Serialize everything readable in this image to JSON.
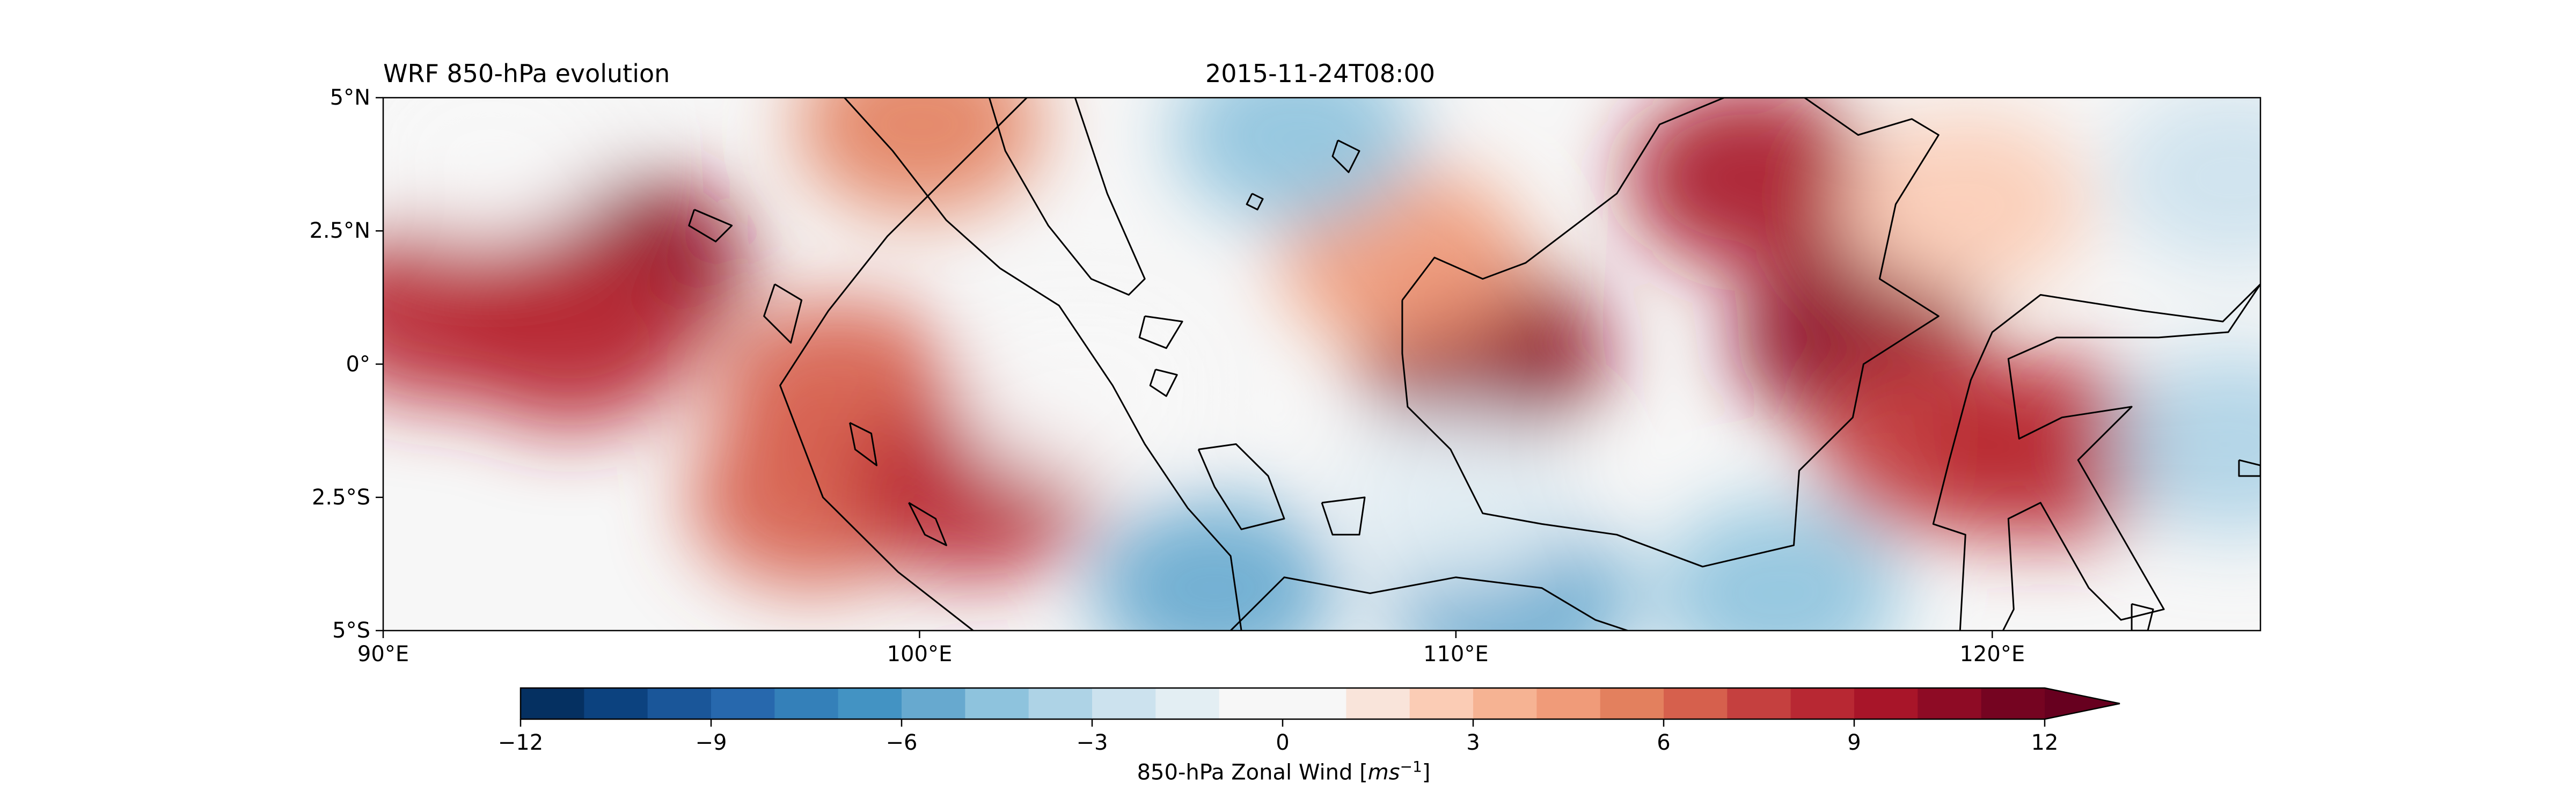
{
  "figure": {
    "title_left": "WRF 850-hPa evolution",
    "title_center": "2015-11-24T08:00"
  },
  "map": {
    "lon_range": [
      90,
      125
    ],
    "lat_range": [
      -5,
      5
    ],
    "lat_ticks": [
      {
        "value": 5,
        "label": "5°N"
      },
      {
        "value": 2.5,
        "label": "2.5°N"
      },
      {
        "value": 0,
        "label": "0°"
      },
      {
        "value": -2.5,
        "label": "2.5°S"
      },
      {
        "value": -5,
        "label": "5°S"
      }
    ],
    "lon_ticks": [
      {
        "value": 90,
        "label": "90°E"
      },
      {
        "value": 100,
        "label": "100°E"
      },
      {
        "value": 110,
        "label": "110°E"
      },
      {
        "value": 120,
        "label": "120°E"
      }
    ],
    "colormap": "RdBu_r",
    "field_features": [
      {
        "lon": 94.5,
        "lat": 1.9,
        "value": 10
      },
      {
        "lon": 91.0,
        "lat": 1.0,
        "value": 8
      },
      {
        "lon": 93.5,
        "lat": 0.5,
        "value": 8
      },
      {
        "lon": 98.5,
        "lat": -0.5,
        "value": 6
      },
      {
        "lon": 98.0,
        "lat": -2.5,
        "value": 6
      },
      {
        "lon": 101.0,
        "lat": -2.3,
        "value": 8
      },
      {
        "lon": 110.5,
        "lat": 0.2,
        "value": 10
      },
      {
        "lon": 117.5,
        "lat": 0.5,
        "value": 10
      },
      {
        "lon": 115.5,
        "lat": 3.5,
        "value": 9
      },
      {
        "lon": 109.0,
        "lat": 2.0,
        "value": 4
      },
      {
        "lon": 119.0,
        "lat": -1.5,
        "value": 7
      },
      {
        "lon": 121.0,
        "lat": -1.6,
        "value": 8
      },
      {
        "lon": 107.0,
        "lat": 4.3,
        "value": -5
      },
      {
        "lon": 105.5,
        "lat": -4.2,
        "value": -6
      },
      {
        "lon": 111.0,
        "lat": -4.4,
        "value": -6
      },
      {
        "lon": 116.0,
        "lat": -4.3,
        "value": -5
      },
      {
        "lon": 124.5,
        "lat": -1.5,
        "value": -4
      },
      {
        "lon": 124.5,
        "lat": 3.5,
        "value": -3
      },
      {
        "lon": 103.0,
        "lat": -0.5,
        "value": -1
      },
      {
        "lon": 110.0,
        "lat": -2.5,
        "value": -2
      },
      {
        "lon": 92.0,
        "lat": 4.0,
        "value": 0
      },
      {
        "lon": 100.0,
        "lat": 4.5,
        "value": 5
      },
      {
        "lon": 119.5,
        "lat": 3.0,
        "value": 2
      }
    ],
    "coastlines": {
      "sumatra": [
        [
          102.0,
          5.0
        ],
        [
          100.6,
          3.6
        ],
        [
          99.4,
          2.4
        ],
        [
          98.3,
          1.0
        ],
        [
          97.4,
          -0.4
        ],
        [
          98.2,
          -2.5
        ],
        [
          99.6,
          -3.9
        ],
        [
          101.0,
          -5.0
        ]
      ],
      "sumatra_east": [
        [
          106.0,
          -5.0
        ],
        [
          105.8,
          -3.6
        ],
        [
          105.0,
          -2.7
        ],
        [
          104.2,
          -1.5
        ],
        [
          103.6,
          -0.4
        ],
        [
          102.6,
          1.1
        ],
        [
          101.5,
          1.8
        ],
        [
          100.5,
          2.7
        ],
        [
          99.5,
          4.0
        ],
        [
          98.6,
          5.0
        ]
      ],
      "malay_peninsula": [
        [
          101.3,
          5.0
        ],
        [
          101.6,
          4.0
        ],
        [
          102.4,
          2.6
        ],
        [
          103.2,
          1.6
        ],
        [
          103.9,
          1.3
        ],
        [
          104.2,
          1.6
        ],
        [
          103.5,
          3.2
        ],
        [
          103.1,
          4.4
        ],
        [
          102.9,
          5.0
        ]
      ],
      "borneo": [
        [
          109.0,
          1.2
        ],
        [
          109.6,
          2.0
        ],
        [
          110.5,
          1.6
        ],
        [
          111.3,
          1.9
        ],
        [
          113.0,
          3.2
        ],
        [
          113.8,
          4.5
        ],
        [
          115.0,
          5.0
        ],
        [
          116.5,
          5.0
        ],
        [
          117.5,
          4.3
        ],
        [
          118.5,
          4.6
        ],
        [
          119.0,
          4.3
        ],
        [
          118.2,
          3.0
        ],
        [
          117.9,
          1.6
        ],
        [
          119.0,
          0.9
        ],
        [
          117.6,
          0.0
        ],
        [
          117.4,
          -1.0
        ],
        [
          116.4,
          -2.0
        ],
        [
          116.3,
          -3.4
        ],
        [
          114.6,
          -3.8
        ],
        [
          113.0,
          -3.2
        ],
        [
          111.6,
          -3.0
        ],
        [
          110.5,
          -2.8
        ],
        [
          109.9,
          -1.6
        ],
        [
          109.1,
          -0.8
        ],
        [
          109.0,
          0.2
        ],
        [
          109.0,
          1.2
        ]
      ],
      "sulawesi": [
        [
          119.4,
          -5.0
        ],
        [
          119.5,
          -3.2
        ],
        [
          118.9,
          -3.0
        ],
        [
          119.2,
          -1.8
        ],
        [
          119.6,
          -0.3
        ],
        [
          120.0,
          0.6
        ],
        [
          120.9,
          1.3
        ],
        [
          122.8,
          1.0
        ],
        [
          124.3,
          0.8
        ],
        [
          125.0,
          1.5
        ],
        [
          124.4,
          0.6
        ],
        [
          123.1,
          0.5
        ],
        [
          121.2,
          0.5
        ],
        [
          120.3,
          0.1
        ],
        [
          120.5,
          -1.4
        ],
        [
          121.3,
          -1.0
        ],
        [
          122.6,
          -0.8
        ],
        [
          121.6,
          -1.8
        ],
        [
          122.4,
          -3.2
        ],
        [
          123.2,
          -4.6
        ],
        [
          122.4,
          -4.8
        ],
        [
          121.8,
          -4.2
        ],
        [
          120.9,
          -2.6
        ],
        [
          120.3,
          -2.9
        ],
        [
          120.4,
          -4.6
        ],
        [
          120.2,
          -5.0
        ]
      ],
      "java_north": [
        [
          105.8,
          -5.0
        ],
        [
          106.8,
          -4.0
        ],
        [
          108.4,
          -4.3
        ],
        [
          110.0,
          -4.0
        ],
        [
          111.6,
          -4.2
        ],
        [
          112.6,
          -4.8
        ],
        [
          113.2,
          -5.0
        ]
      ],
      "bangka": [
        [
          105.2,
          -1.6
        ],
        [
          105.9,
          -1.5
        ],
        [
          106.5,
          -2.1
        ],
        [
          106.8,
          -2.9
        ],
        [
          106.0,
          -3.1
        ],
        [
          105.5,
          -2.3
        ],
        [
          105.2,
          -1.6
        ]
      ],
      "belitung": [
        [
          107.5,
          -2.6
        ],
        [
          108.3,
          -2.5
        ],
        [
          108.2,
          -3.2
        ],
        [
          107.7,
          -3.2
        ],
        [
          107.5,
          -2.6
        ]
      ],
      "nias": [
        [
          97.3,
          1.5
        ],
        [
          97.8,
          1.2
        ],
        [
          97.6,
          0.4
        ],
        [
          97.1,
          0.9
        ],
        [
          97.3,
          1.5
        ]
      ],
      "siberut": [
        [
          98.7,
          -1.1
        ],
        [
          99.1,
          -1.3
        ],
        [
          99.2,
          -1.9
        ],
        [
          98.8,
          -1.6
        ],
        [
          98.7,
          -1.1
        ]
      ],
      "simeulue": [
        [
          95.8,
          2.9
        ],
        [
          96.5,
          2.6
        ],
        [
          96.2,
          2.3
        ],
        [
          95.7,
          2.6
        ],
        [
          95.8,
          2.9
        ]
      ],
      "natuna": [
        [
          107.8,
          4.2
        ],
        [
          108.2,
          4.0
        ],
        [
          108.0,
          3.6
        ],
        [
          107.7,
          3.9
        ],
        [
          107.8,
          4.2
        ]
      ],
      "riau_islands": [
        [
          104.2,
          0.9
        ],
        [
          104.9,
          0.8
        ],
        [
          104.6,
          0.3
        ],
        [
          104.1,
          0.5
        ],
        [
          104.2,
          0.9
        ]
      ],
      "lingga": [
        [
          104.4,
          -0.1
        ],
        [
          104.8,
          -0.2
        ],
        [
          104.6,
          -0.6
        ],
        [
          104.3,
          -0.4
        ],
        [
          104.4,
          -0.1
        ]
      ],
      "anambas": [
        [
          106.2,
          3.2
        ],
        [
          106.4,
          3.1
        ],
        [
          106.3,
          2.9
        ],
        [
          106.1,
          3.0
        ],
        [
          106.2,
          3.2
        ]
      ],
      "mentawai": [
        [
          99.8,
          -2.6
        ],
        [
          100.3,
          -2.9
        ],
        [
          100.5,
          -3.4
        ],
        [
          100.1,
          -3.2
        ],
        [
          99.8,
          -2.6
        ]
      ],
      "sula": [
        [
          124.6,
          -1.8
        ],
        [
          125.0,
          -1.9
        ],
        [
          125.0,
          -2.1
        ],
        [
          124.6,
          -2.1
        ],
        [
          124.6,
          -1.8
        ]
      ],
      "buton": [
        [
          122.6,
          -4.5
        ],
        [
          123.0,
          -4.6
        ],
        [
          122.9,
          -5.0
        ],
        [
          122.6,
          -5.0
        ],
        [
          122.6,
          -4.5
        ]
      ]
    }
  },
  "colorbar": {
    "min": -12,
    "max": 12,
    "step": 1,
    "extend": "max",
    "ticks": [
      -12,
      -9,
      -6,
      -3,
      0,
      3,
      6,
      9,
      12
    ],
    "tick_labels": [
      "−12",
      "−9",
      "−6",
      "−3",
      "0",
      "3",
      "6",
      "9",
      "12"
    ],
    "label_text": "850-hPa Zonal Wind [",
    "label_unit": "ms",
    "label_exp": "−1",
    "label_close": "]",
    "extend_color": "#67001f"
  }
}
